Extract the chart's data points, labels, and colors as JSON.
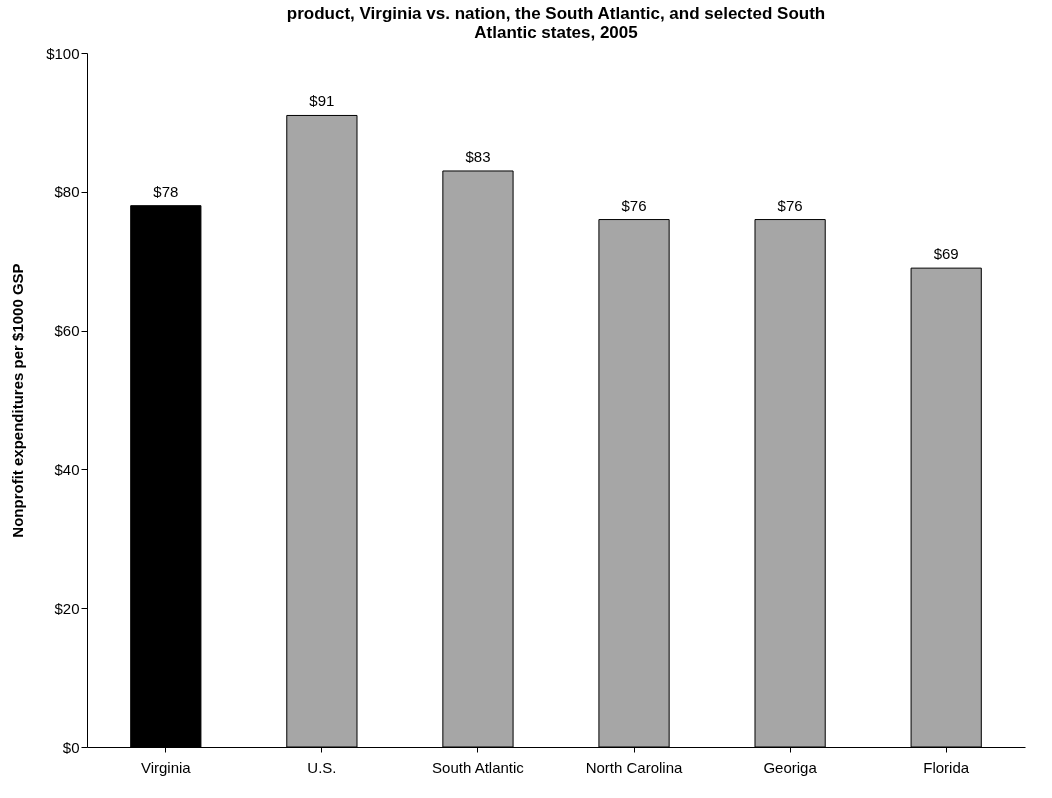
{
  "chart_data": {
    "type": "bar",
    "title": "product, Virginia vs. nation, the South Atlantic, and selected South\nAtlantic states, 2005",
    "ylabel": "Nonprofit expenditures per $1000 GSP",
    "categories": [
      "Virginia",
      "U.S.",
      "South Atlantic",
      "North Carolina",
      "Georiga",
      "Florida"
    ],
    "values": [
      78,
      91,
      83,
      76,
      76,
      69
    ],
    "colors": [
      "#000000",
      "#a6a6a6",
      "#a6a6a6",
      "#a6a6a6",
      "#a6a6a6",
      "#a6a6a6"
    ],
    "value_labels": [
      "$78",
      "$91",
      "$83",
      "$76",
      "$76",
      "$69"
    ],
    "ylim": [
      0,
      100
    ],
    "yticks": [
      {
        "value": 0,
        "label": "$0"
      },
      {
        "value": 20,
        "label": "$20"
      },
      {
        "value": 40,
        "label": "$40"
      },
      {
        "value": 60,
        "label": "$60"
      },
      {
        "value": 80,
        "label": "$80"
      },
      {
        "value": 100,
        "label": "$100"
      }
    ],
    "grid": false
  }
}
